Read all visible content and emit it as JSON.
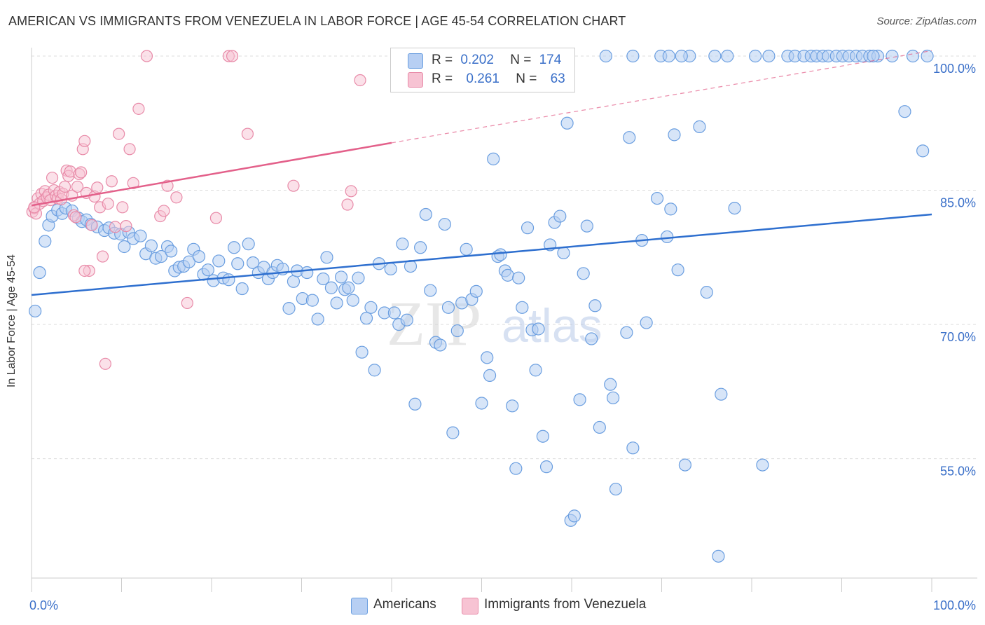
{
  "title": "AMERICAN VS IMMIGRANTS FROM VENEZUELA IN LABOR FORCE | AGE 45-54 CORRELATION CHART",
  "source": "Source: ZipAtlas.com",
  "watermark": {
    "zip": "ZIP",
    "atlas": "atlas"
  },
  "legend": {
    "americans": {
      "r_label": "R =",
      "r_value": "0.202",
      "n_label": "N =",
      "n_value": "174"
    },
    "venezuela": {
      "r_label": "R =",
      "r_value": "0.261",
      "n_label": "N =",
      "n_value": "63"
    }
  },
  "colors": {
    "blue": "#6a9ee0",
    "blue_fill": "#b7cff3",
    "blue_line": "#2e6fcf",
    "pink": "#e88aa8",
    "pink_fill": "#f7c3d3",
    "pink_line": "#e3608a",
    "grid": "#dddddd",
    "tick_label": "#3b70c9"
  },
  "chart_data": {
    "type": "scatter",
    "title": "AMERICAN VS IMMIGRANTS FROM VENEZUELA IN LABOR FORCE | AGE 45-54 CORRELATION CHART",
    "xlabel": "",
    "ylabel": "In Labor Force | Age 45-54",
    "xlim": [
      0,
      100
    ],
    "ylim": [
      40,
      101
    ],
    "x_ticks": [
      "0.0%",
      "100.0%"
    ],
    "y_ticks": [
      {
        "value": 100,
        "label": "100.0%"
      },
      {
        "value": 85,
        "label": "85.0%"
      },
      {
        "value": 70,
        "label": "70.0%"
      },
      {
        "value": 55,
        "label": "55.0%"
      }
    ],
    "grid": true,
    "legend_position": "top-center",
    "series": [
      {
        "name": "Americans",
        "color": "#6a9ee0",
        "trend": {
          "x0": 0,
          "y0": 73.3,
          "x1": 100,
          "y1": 82.3
        },
        "points": [
          [
            0.4,
            71.5
          ],
          [
            0.9,
            75.8
          ],
          [
            1.5,
            79.3
          ],
          [
            1.9,
            81.1
          ],
          [
            2.3,
            82.1
          ],
          [
            2.9,
            82.8
          ],
          [
            3.4,
            82.4
          ],
          [
            3.8,
            83.0
          ],
          [
            4.5,
            82.7
          ],
          [
            5.2,
            81.9
          ],
          [
            5.6,
            81.5
          ],
          [
            6.1,
            81.7
          ],
          [
            6.6,
            81.2
          ],
          [
            7.3,
            80.9
          ],
          [
            8.1,
            80.5
          ],
          [
            8.6,
            80.8
          ],
          [
            9.2,
            80.2
          ],
          [
            9.9,
            80.1
          ],
          [
            10.3,
            78.7
          ],
          [
            10.8,
            80.3
          ],
          [
            11.3,
            79.6
          ],
          [
            12.1,
            79.9
          ],
          [
            12.7,
            77.9
          ],
          [
            13.3,
            78.8
          ],
          [
            13.8,
            77.4
          ],
          [
            14.4,
            77.6
          ],
          [
            15.1,
            78.7
          ],
          [
            15.5,
            78.2
          ],
          [
            15.9,
            76.0
          ],
          [
            16.4,
            76.4
          ],
          [
            16.9,
            76.5
          ],
          [
            17.5,
            77.0
          ],
          [
            18.0,
            78.4
          ],
          [
            18.6,
            77.6
          ],
          [
            19.1,
            75.6
          ],
          [
            19.6,
            76.1
          ],
          [
            20.2,
            74.9
          ],
          [
            20.8,
            77.1
          ],
          [
            21.3,
            75.2
          ],
          [
            21.9,
            75.0
          ],
          [
            22.5,
            78.6
          ],
          [
            22.9,
            76.8
          ],
          [
            23.4,
            74.0
          ],
          [
            24.1,
            79.0
          ],
          [
            24.6,
            76.9
          ],
          [
            25.2,
            75.8
          ],
          [
            25.8,
            76.4
          ],
          [
            26.3,
            75.1
          ],
          [
            26.8,
            75.8
          ],
          [
            27.3,
            76.6
          ],
          [
            27.9,
            76.2
          ],
          [
            28.6,
            71.8
          ],
          [
            29.1,
            74.8
          ],
          [
            29.5,
            76.0
          ],
          [
            30.1,
            72.9
          ],
          [
            30.6,
            75.8
          ],
          [
            31.2,
            72.7
          ],
          [
            31.8,
            70.6
          ],
          [
            32.4,
            75.1
          ],
          [
            32.8,
            77.5
          ],
          [
            33.3,
            74.1
          ],
          [
            33.9,
            72.4
          ],
          [
            34.4,
            75.3
          ],
          [
            34.8,
            73.9
          ],
          [
            35.2,
            74.1
          ],
          [
            35.7,
            72.7
          ],
          [
            36.3,
            75.2
          ],
          [
            36.7,
            66.9
          ],
          [
            37.2,
            70.7
          ],
          [
            37.7,
            71.9
          ],
          [
            38.1,
            64.9
          ],
          [
            38.6,
            76.8
          ],
          [
            39.2,
            71.3
          ],
          [
            39.9,
            76.2
          ],
          [
            40.3,
            71.3
          ],
          [
            40.8,
            70.0
          ],
          [
            41.2,
            79.0
          ],
          [
            41.7,
            70.5
          ],
          [
            42.1,
            76.5
          ],
          [
            42.6,
            61.1
          ],
          [
            43.2,
            78.6
          ],
          [
            43.8,
            82.3
          ],
          [
            44.3,
            73.8
          ],
          [
            44.9,
            68.0
          ],
          [
            45.4,
            67.7
          ],
          [
            45.9,
            81.2
          ],
          [
            46.3,
            71.9
          ],
          [
            46.8,
            57.9
          ],
          [
            47.3,
            69.3
          ],
          [
            47.8,
            72.4
          ],
          [
            48.3,
            78.4
          ],
          [
            48.9,
            72.8
          ],
          [
            49.4,
            73.7
          ],
          [
            50.0,
            61.2
          ],
          [
            50.6,
            66.3
          ],
          [
            50.9,
            64.3
          ],
          [
            51.3,
            88.5
          ],
          [
            51.8,
            77.6
          ],
          [
            52.1,
            77.8
          ],
          [
            52.6,
            76.0
          ],
          [
            52.9,
            75.5
          ],
          [
            53.4,
            60.9
          ],
          [
            53.8,
            53.9
          ],
          [
            54.1,
            75.2
          ],
          [
            54.5,
            71.9
          ],
          [
            55.1,
            80.8
          ],
          [
            55.6,
            69.4
          ],
          [
            56.0,
            64.9
          ],
          [
            56.3,
            69.5
          ],
          [
            56.8,
            57.5
          ],
          [
            57.2,
            54.1
          ],
          [
            57.6,
            78.9
          ],
          [
            58.1,
            81.4
          ],
          [
            58.7,
            82.1
          ],
          [
            59.1,
            78.0
          ],
          [
            59.5,
            92.5
          ],
          [
            59.9,
            48.1
          ],
          [
            60.3,
            48.6
          ],
          [
            60.9,
            61.6
          ],
          [
            61.3,
            75.7
          ],
          [
            61.7,
            81.0
          ],
          [
            62.2,
            68.4
          ],
          [
            62.6,
            72.1
          ],
          [
            63.1,
            58.5
          ],
          [
            64.3,
            63.3
          ],
          [
            64.6,
            61.8
          ],
          [
            64.9,
            51.6
          ],
          [
            66.1,
            69.1
          ],
          [
            66.4,
            90.9
          ],
          [
            66.8,
            56.2
          ],
          [
            67.8,
            79.4
          ],
          [
            68.3,
            70.2
          ],
          [
            69.5,
            84.1
          ],
          [
            69.9,
            100.0
          ],
          [
            70.6,
            79.8
          ],
          [
            71.0,
            82.9
          ],
          [
            71.4,
            91.2
          ],
          [
            71.8,
            76.1
          ],
          [
            72.6,
            54.3
          ],
          [
            73.1,
            100.0
          ],
          [
            74.2,
            92.1
          ],
          [
            75.0,
            73.6
          ],
          [
            75.9,
            100.0
          ],
          [
            76.6,
            62.2
          ],
          [
            77.3,
            100.0
          ],
          [
            78.1,
            83.0
          ],
          [
            80.4,
            100.0
          ],
          [
            81.2,
            54.3
          ],
          [
            81.9,
            100.0
          ],
          [
            84.0,
            100.0
          ],
          [
            84.8,
            100.0
          ],
          [
            85.8,
            100.0
          ],
          [
            86.6,
            100.0
          ],
          [
            87.2,
            100.0
          ],
          [
            87.9,
            100.0
          ],
          [
            88.5,
            100.0
          ],
          [
            89.4,
            100.0
          ],
          [
            90.1,
            100.0
          ],
          [
            90.8,
            100.0
          ],
          [
            91.6,
            100.0
          ],
          [
            92.3,
            100.0
          ],
          [
            93.1,
            100.0
          ],
          [
            94.0,
            100.0
          ],
          [
            95.6,
            100.0
          ],
          [
            97.0,
            93.8
          ],
          [
            97.9,
            100.0
          ],
          [
            99.0,
            89.4
          ],
          [
            99.5,
            100.0
          ],
          [
            76.3,
            44.1
          ],
          [
            93.5,
            100.0
          ],
          [
            63.8,
            100.0
          ],
          [
            66.8,
            100.0
          ],
          [
            70.8,
            100.0
          ],
          [
            72.2,
            100.0
          ]
        ]
      },
      {
        "name": "Immigrants from Venezuela",
        "color": "#e88aa8",
        "trend": {
          "x0": 0,
          "y0": 83.3,
          "x1": 40,
          "y1": 90.3,
          "dash_to_x": 100,
          "dash_to_y": 100.6
        },
        "points": [
          [
            0.1,
            82.6
          ],
          [
            0.3,
            83.0
          ],
          [
            0.5,
            82.4
          ],
          [
            0.7,
            84.1
          ],
          [
            0.9,
            83.5
          ],
          [
            1.1,
            84.6
          ],
          [
            1.3,
            83.8
          ],
          [
            1.5,
            84.9
          ],
          [
            1.7,
            84.2
          ],
          [
            1.9,
            84.5
          ],
          [
            2.1,
            83.9
          ],
          [
            2.3,
            86.4
          ],
          [
            2.5,
            85.0
          ],
          [
            2.7,
            84.4
          ],
          [
            2.9,
            84.1
          ],
          [
            3.1,
            84.8
          ],
          [
            3.3,
            84.0
          ],
          [
            3.5,
            84.6
          ],
          [
            3.7,
            85.4
          ],
          [
            3.9,
            87.2
          ],
          [
            4.1,
            86.6
          ],
          [
            4.3,
            87.1
          ],
          [
            4.5,
            84.4
          ],
          [
            4.7,
            82.2
          ],
          [
            4.9,
            82.0
          ],
          [
            5.1,
            85.4
          ],
          [
            5.3,
            86.8
          ],
          [
            5.5,
            87.0
          ],
          [
            5.7,
            89.6
          ],
          [
            5.9,
            90.5
          ],
          [
            6.1,
            84.7
          ],
          [
            6.4,
            76.0
          ],
          [
            6.7,
            81.1
          ],
          [
            7.0,
            84.3
          ],
          [
            7.3,
            85.3
          ],
          [
            7.6,
            83.1
          ],
          [
            7.9,
            77.6
          ],
          [
            8.2,
            65.6
          ],
          [
            8.5,
            83.5
          ],
          [
            8.9,
            86.0
          ],
          [
            9.3,
            80.9
          ],
          [
            9.7,
            91.3
          ],
          [
            10.1,
            83.1
          ],
          [
            10.5,
            81.0
          ],
          [
            10.9,
            89.6
          ],
          [
            11.3,
            85.8
          ],
          [
            11.9,
            94.1
          ],
          [
            12.8,
            100.0
          ],
          [
            14.3,
            82.1
          ],
          [
            14.7,
            82.7
          ],
          [
            15.1,
            85.5
          ],
          [
            16.1,
            84.2
          ],
          [
            17.3,
            72.4
          ],
          [
            20.5,
            81.9
          ],
          [
            21.9,
            100.0
          ],
          [
            22.3,
            100.0
          ],
          [
            24.0,
            91.3
          ],
          [
            29.1,
            85.5
          ],
          [
            35.5,
            84.9
          ],
          [
            35.1,
            83.4
          ],
          [
            36.5,
            97.3
          ],
          [
            0.3,
            83.1
          ],
          [
            5.9,
            76.0
          ]
        ]
      }
    ]
  },
  "bottom_legend": {
    "americans": "Americans",
    "venezuela": "Immigrants from Venezuela"
  }
}
